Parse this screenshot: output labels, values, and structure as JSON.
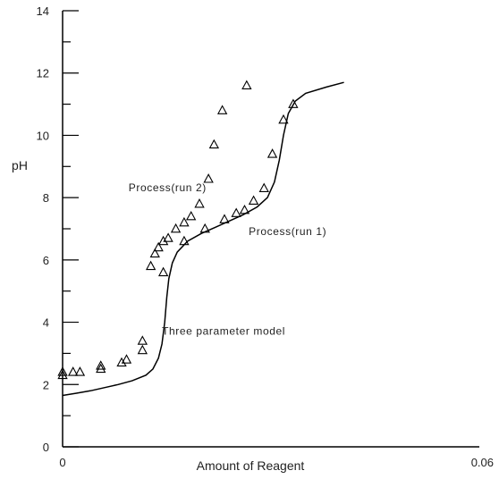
{
  "chart_data": {
    "type": "scatter",
    "title": "",
    "xlabel": "Amount of Reagent",
    "ylabel": "pH",
    "xlim": [
      0,
      0.06
    ],
    "ylim": [
      0,
      14
    ],
    "x_tick_labels": [
      {
        "value": 0,
        "label": "0"
      },
      {
        "value": 0.06,
        "label": "0.06"
      }
    ],
    "y_tick_labels": [
      {
        "value": 0,
        "label": "0"
      },
      {
        "value": 2,
        "label": "2"
      },
      {
        "value": 4,
        "label": "4"
      },
      {
        "value": 6,
        "label": "6"
      },
      {
        "value": 8,
        "label": "8"
      },
      {
        "value": 10,
        "label": "10"
      },
      {
        "value": 12,
        "label": "12"
      },
      {
        "value": 14,
        "label": "14"
      }
    ],
    "y_minor_step": 1,
    "grid": false,
    "series": [
      {
        "name": "Process(run 1)",
        "mode": "markers",
        "marker": "triangle",
        "color": "#000000",
        "points": [
          {
            "x": 0,
            "y": 2.3
          },
          {
            "x": 0,
            "y": 2.4
          },
          {
            "x": 0.0015,
            "y": 2.4
          },
          {
            "x": 0.0025,
            "y": 2.4
          },
          {
            "x": 0.0055,
            "y": 2.5
          },
          {
            "x": 0.0055,
            "y": 2.6
          },
          {
            "x": 0.0085,
            "y": 2.7
          },
          {
            "x": 0.0092,
            "y": 2.8
          },
          {
            "x": 0.0115,
            "y": 3.1
          },
          {
            "x": 0.0115,
            "y": 3.4
          },
          {
            "x": 0.0145,
            "y": 5.6
          },
          {
            "x": 0.0175,
            "y": 6.6
          },
          {
            "x": 0.0205,
            "y": 7.0
          },
          {
            "x": 0.0233,
            "y": 7.3
          },
          {
            "x": 0.025,
            "y": 7.5
          },
          {
            "x": 0.0262,
            "y": 7.6
          },
          {
            "x": 0.0275,
            "y": 7.9
          },
          {
            "x": 0.029,
            "y": 8.3
          },
          {
            "x": 0.0302,
            "y": 9.4
          },
          {
            "x": 0.0318,
            "y": 10.5
          },
          {
            "x": 0.0332,
            "y": 11.0
          }
        ]
      },
      {
        "name": "Process(run 2)",
        "mode": "markers",
        "marker": "triangle",
        "color": "#000000",
        "points": [
          {
            "x": 0.0127,
            "y": 5.8
          },
          {
            "x": 0.0133,
            "y": 6.2
          },
          {
            "x": 0.0138,
            "y": 6.4
          },
          {
            "x": 0.0145,
            "y": 6.6
          },
          {
            "x": 0.0152,
            "y": 6.7
          },
          {
            "x": 0.0163,
            "y": 7.0
          },
          {
            "x": 0.0175,
            "y": 7.2
          },
          {
            "x": 0.0185,
            "y": 7.4
          },
          {
            "x": 0.0197,
            "y": 7.8
          },
          {
            "x": 0.021,
            "y": 8.6
          },
          {
            "x": 0.0218,
            "y": 9.7
          },
          {
            "x": 0.023,
            "y": 10.8
          },
          {
            "x": 0.0265,
            "y": 11.6
          }
        ]
      },
      {
        "name": "Three parameter model",
        "mode": "line",
        "color": "#000000",
        "points": [
          {
            "x": 0,
            "y": 1.65
          },
          {
            "x": 0.002,
            "y": 1.72
          },
          {
            "x": 0.004,
            "y": 1.8
          },
          {
            "x": 0.006,
            "y": 1.9
          },
          {
            "x": 0.008,
            "y": 2.0
          },
          {
            "x": 0.01,
            "y": 2.12
          },
          {
            "x": 0.012,
            "y": 2.3
          },
          {
            "x": 0.013,
            "y": 2.5
          },
          {
            "x": 0.0138,
            "y": 2.85
          },
          {
            "x": 0.0143,
            "y": 3.3
          },
          {
            "x": 0.0147,
            "y": 4.0
          },
          {
            "x": 0.015,
            "y": 4.8
          },
          {
            "x": 0.0153,
            "y": 5.4
          },
          {
            "x": 0.0158,
            "y": 5.9
          },
          {
            "x": 0.0165,
            "y": 6.25
          },
          {
            "x": 0.018,
            "y": 6.6
          },
          {
            "x": 0.02,
            "y": 6.85
          },
          {
            "x": 0.022,
            "y": 7.05
          },
          {
            "x": 0.024,
            "y": 7.25
          },
          {
            "x": 0.026,
            "y": 7.45
          },
          {
            "x": 0.028,
            "y": 7.7
          },
          {
            "x": 0.0295,
            "y": 8.0
          },
          {
            "x": 0.0305,
            "y": 8.5
          },
          {
            "x": 0.0312,
            "y": 9.2
          },
          {
            "x": 0.0318,
            "y": 10.0
          },
          {
            "x": 0.0325,
            "y": 10.7
          },
          {
            "x": 0.0335,
            "y": 11.1
          },
          {
            "x": 0.035,
            "y": 11.35
          },
          {
            "x": 0.038,
            "y": 11.55
          },
          {
            "x": 0.0405,
            "y": 11.7
          }
        ]
      }
    ],
    "annotations": [
      {
        "text": "Process(run 2)",
        "x": 0.0095,
        "y": 8.2
      },
      {
        "text": "Process(run 1)",
        "x": 0.0268,
        "y": 6.8
      },
      {
        "text": "Three parameter model",
        "x": 0.0143,
        "y": 3.6
      }
    ]
  }
}
